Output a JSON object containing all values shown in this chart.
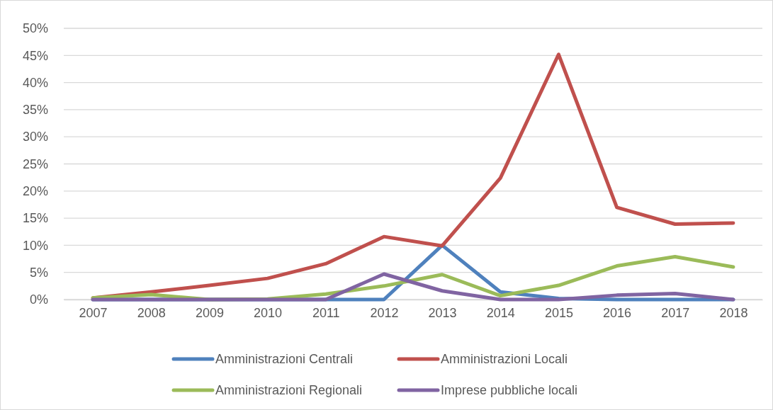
{
  "chart_data": {
    "type": "line",
    "categories": [
      "2007",
      "2008",
      "2009",
      "2010",
      "2011",
      "2012",
      "2013",
      "2014",
      "2015",
      "2016",
      "2017",
      "2018"
    ],
    "ylim": [
      0,
      50
    ],
    "yticks": [
      {
        "value": 0,
        "label": "0%"
      },
      {
        "value": 5,
        "label": "5%"
      },
      {
        "value": 10,
        "label": "10%"
      },
      {
        "value": 15,
        "label": "15%"
      },
      {
        "value": 20,
        "label": "20%"
      },
      {
        "value": 25,
        "label": "25%"
      },
      {
        "value": 30,
        "label": "30%"
      },
      {
        "value": 35,
        "label": "35%"
      },
      {
        "value": 40,
        "label": "40%"
      },
      {
        "value": 45,
        "label": "45%"
      },
      {
        "value": 50,
        "label": "50%"
      }
    ],
    "grid": "y",
    "legend": "bottom",
    "marker": "none",
    "line_style": "solid",
    "series": [
      {
        "name": "Amministrazioni Centrali",
        "color": "#4f81bd",
        "values": [
          0,
          0,
          0,
          0,
          0,
          0,
          10.0,
          1.4,
          0.2,
          0,
          0,
          0
        ]
      },
      {
        "name": "Amministrazioni Locali",
        "color": "#c0504d",
        "values": [
          0.3,
          1.4,
          2.6,
          3.9,
          6.6,
          11.6,
          9.9,
          22.4,
          45.2,
          17.0,
          13.9,
          14.1
        ]
      },
      {
        "name": "Amministrazioni Regionali",
        "color": "#9bbb59",
        "values": [
          0.3,
          0.9,
          0,
          0.1,
          1.0,
          2.5,
          4.6,
          0.7,
          2.6,
          6.2,
          7.9,
          6.0
        ]
      },
      {
        "name": "Imprese pubbliche locali",
        "color": "#8064a2",
        "values": [
          0,
          0,
          0,
          0,
          0,
          4.7,
          1.6,
          0,
          0,
          0.8,
          1.1,
          0
        ]
      }
    ]
  }
}
